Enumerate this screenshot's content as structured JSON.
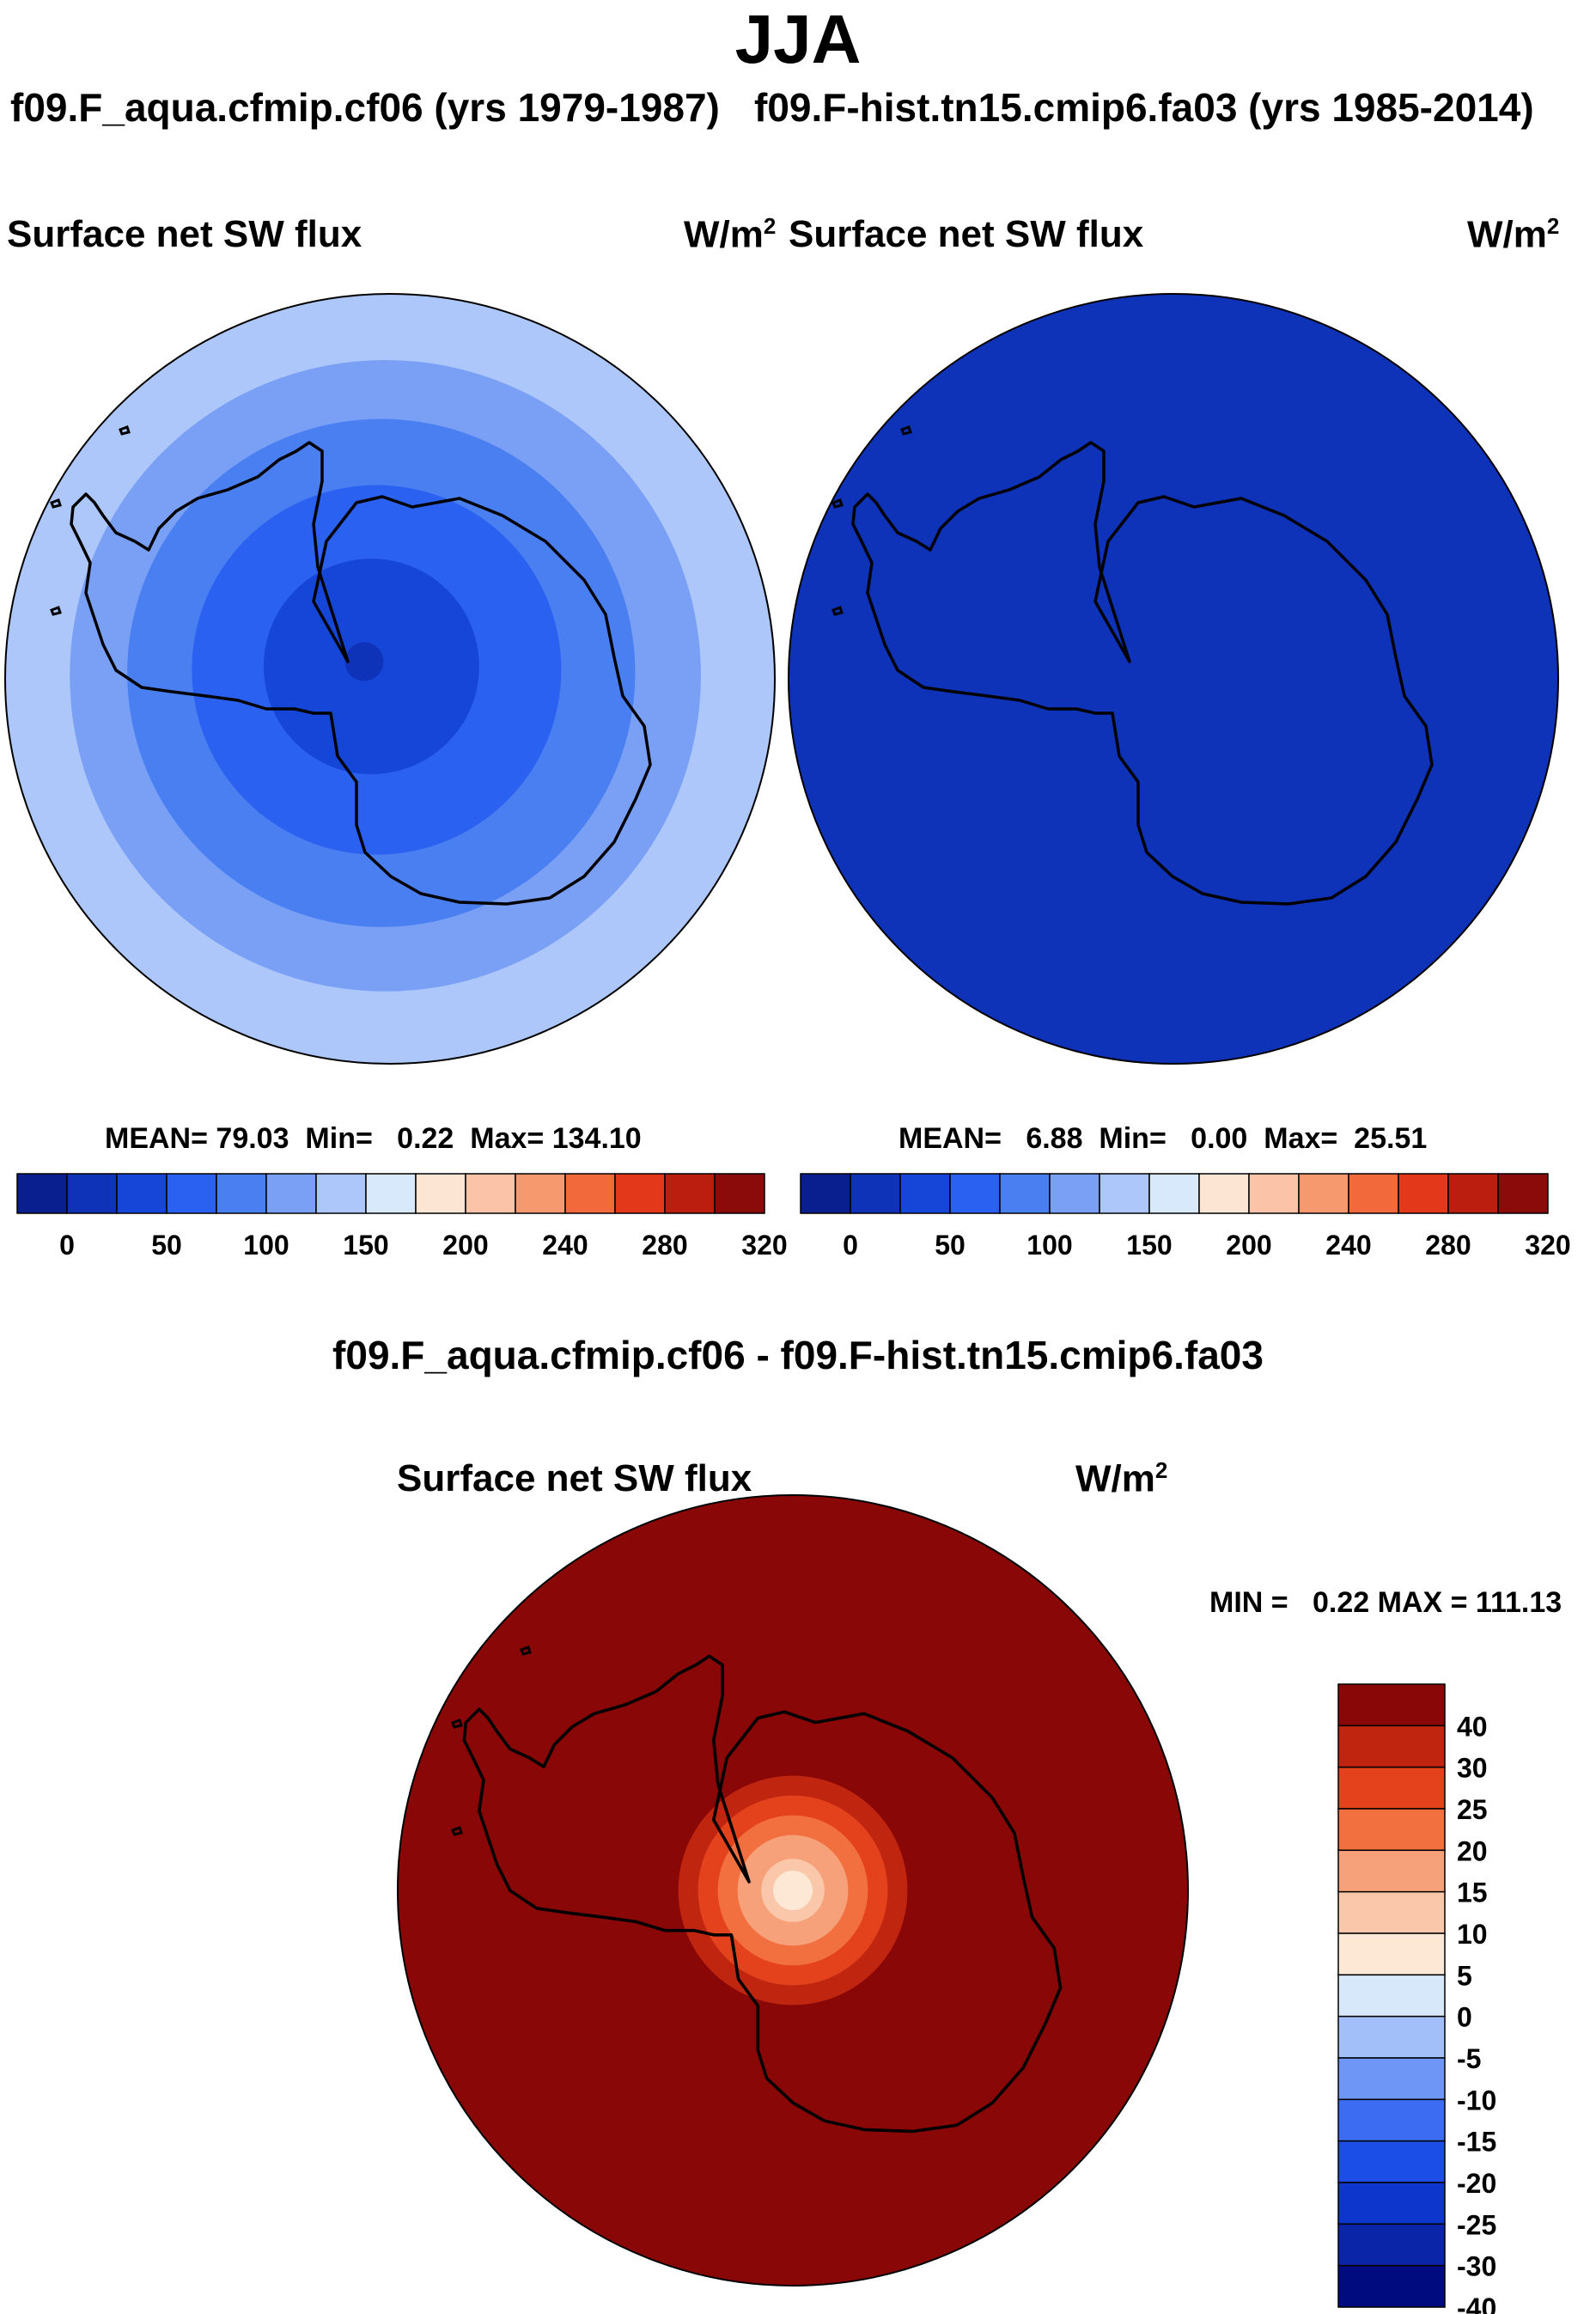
{
  "season": "JJA",
  "panels": {
    "left": {
      "run_title": "f09.F_aqua.cfmip.cf06 (yrs 1979-1987)",
      "variable": "Surface net SW flux",
      "units_base": "W/m",
      "units_exp": "2",
      "stats": {
        "mean_label": "MEAN=",
        "mean": "79.03",
        "min_label": "Min=",
        "min": "0.22",
        "max_label": "Max=",
        "max": "134.10"
      }
    },
    "right": {
      "run_title": "f09.F-hist.tn15.cmip6.fa03 (yrs 1985-2014)",
      "variable": "Surface net SW flux",
      "units_base": "W/m",
      "units_exp": "2",
      "stats": {
        "mean_label": "MEAN=",
        "mean": "6.88",
        "min_label": "Min=",
        "min": "0.00",
        "max_label": "Max=",
        "max": "25.51"
      }
    },
    "diff": {
      "title": "f09.F_aqua.cfmip.cf06 - f09.F-hist.tn15.cmip6.fa03",
      "variable": "Surface net SW flux",
      "units_base": "W/m",
      "units_exp": "2",
      "stats": {
        "min_label": "MIN =",
        "min": "0.22",
        "max_label": "MAX =",
        "max": "111.13"
      }
    }
  },
  "colors": {
    "abs_palette": [
      "#0a1f8f",
      "#0e32b8",
      "#1646d8",
      "#2a61f0",
      "#4a7ff2",
      "#7aa0f6",
      "#adc7fa",
      "#d8e9fb",
      "#fde5d3",
      "#fbc4a8",
      "#f7996f",
      "#f26a3b",
      "#e3381a",
      "#bb1e0e",
      "#8b0a0a"
    ],
    "diff_palette": [
      "#000b80",
      "#0a25a8",
      "#0d36cc",
      "#1b4ee6",
      "#3b6cf2",
      "#6d96f6",
      "#a3bff9",
      "#d8e8fb",
      "#fde8d6",
      "#fbc7aa",
      "#f7a17a",
      "#f2703f",
      "#e4421d",
      "#c02510",
      "#8a0707"
    ],
    "contour": "#000000"
  },
  "chart_data": [
    {
      "type": "heatmap",
      "projection": "south-polar stereographic",
      "title": "Surface net SW flux",
      "subtitle": "f09.F_aqua.cfmip.cf06 (yrs 1979-1987)",
      "units": "W/m2",
      "levels": [
        0,
        25,
        50,
        75,
        100,
        125,
        150,
        175,
        200,
        220,
        240,
        260,
        280,
        300,
        320
      ],
      "colorbar_tick_labels": [
        "0",
        "50",
        "100",
        "150",
        "200",
        "240",
        "280",
        "320"
      ],
      "zonal_profile": {
        "distance_from_pole_fraction": [
          0.0,
          0.28,
          0.48,
          0.66,
          0.82,
          0.94,
          1.0
        ],
        "value": [
          10,
          25,
          50,
          75,
          100,
          125,
          134
        ]
      },
      "mean": 79.03,
      "min": 0.22,
      "max": 134.1
    },
    {
      "type": "heatmap",
      "projection": "south-polar stereographic",
      "title": "Surface net SW flux",
      "subtitle": "f09.F-hist.tn15.cmip6.fa03 (yrs 1985-2014)",
      "units": "W/m2",
      "levels": [
        0,
        25,
        50,
        75,
        100,
        125,
        150,
        175,
        200,
        220,
        240,
        260,
        280,
        300,
        320
      ],
      "colorbar_tick_labels": [
        "0",
        "50",
        "100",
        "150",
        "200",
        "240",
        "280",
        "320"
      ],
      "uniform_value": 6.88,
      "mean": 6.88,
      "min": 0.0,
      "max": 25.51
    },
    {
      "type": "heatmap",
      "projection": "south-polar stereographic",
      "title": "f09.F_aqua.cfmip.cf06 - f09.F-hist.tn15.cmip6.fa03",
      "subtitle": "Surface net SW flux",
      "units": "W/m2",
      "levels": [
        -40,
        -30,
        -25,
        -20,
        -15,
        -10,
        -5,
        0,
        5,
        10,
        15,
        20,
        25,
        30,
        40
      ],
      "colorbar_tick_labels": [
        "40",
        "30",
        "25",
        "20",
        "15",
        "10",
        "5",
        "0",
        "-5",
        "-10",
        "-15",
        "-20",
        "-25",
        "-30",
        "-40"
      ],
      "zonal_profile": {
        "distance_from_pole_fraction": [
          0.0,
          0.08,
          0.14,
          0.19,
          0.24,
          0.29,
          0.34,
          0.4,
          1.0
        ],
        "value": [
          2,
          7,
          12,
          17,
          22,
          27,
          35,
          45,
          111
        ]
      },
      "min": 0.22,
      "max": 111.13
    }
  ]
}
